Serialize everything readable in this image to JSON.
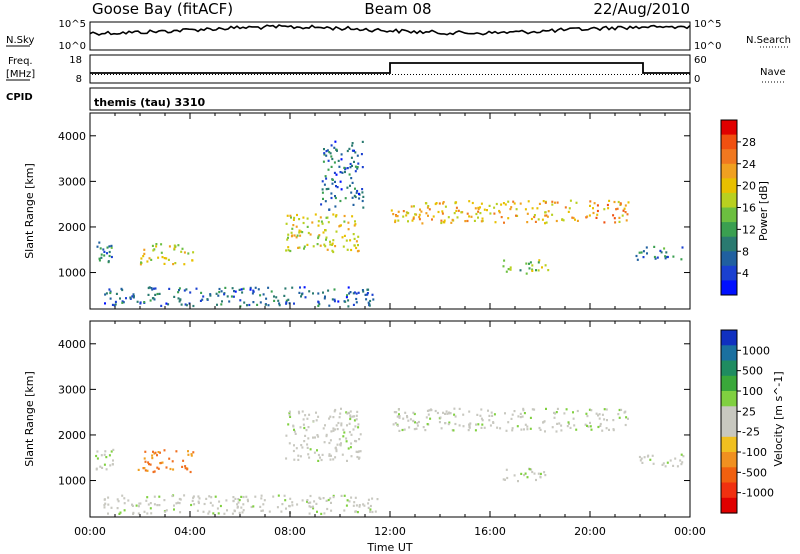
{
  "header": {
    "station": "Goose Bay (fitACF)",
    "beam": "Beam 08",
    "date": "22/Aug/2010"
  },
  "panels": {
    "noise": {
      "left_label": "N.Sky",
      "left_ticks": [
        "10^5",
        "10^0"
      ],
      "right_ticks": [
        "10^5",
        "10^0"
      ],
      "right_label": "N.Search"
    },
    "freq": {
      "label_line1": "Freq.",
      "label_line2": "[MHz]",
      "left_ticks": [
        "18",
        "8"
      ],
      "right_ticks": [
        "60",
        "0"
      ],
      "right_label": "Nave"
    },
    "cpid": {
      "label": "CPID",
      "text": "themis (tau) 3310"
    }
  },
  "colorbars": {
    "power": {
      "title": "Power [dB]",
      "ticks": [
        "28",
        "24",
        "20",
        "16",
        "12",
        "8",
        "4"
      ],
      "colors": [
        "#e00000",
        "#f05010",
        "#f07820",
        "#f0a020",
        "#e8c000",
        "#b8d020",
        "#6cbf40",
        "#3a9f50",
        "#2a7a70",
        "#2060a0",
        "#1a40d0",
        "#0010ff"
      ]
    },
    "velocity": {
      "title": "Velocity [m s^-1]",
      "ticks": [
        "1000",
        "500",
        "100",
        "25",
        "-25",
        "-100",
        "-500",
        "-1000"
      ],
      "colors": [
        "#1030c0",
        "#1a70a0",
        "#1f8c60",
        "#3aa83a",
        "#80d040",
        "#c8c8c0",
        "#c8c8c0",
        "#f0c020",
        "#f09020",
        "#f06010",
        "#f03010",
        "#e00000"
      ]
    }
  },
  "chart_data": [
    {
      "type": "heatmap",
      "name": "power",
      "xlabel": "",
      "ylabel": "Slant Range [km]",
      "xlim_ut_hours": [
        0,
        24
      ],
      "ylim_km": [
        200,
        4500
      ],
      "yticks": [
        1000,
        2000,
        3000,
        4000
      ],
      "colorbar": "Power [dB]",
      "echo_regions": [
        {
          "t0": 0.2,
          "t1": 0.9,
          "r0": 1250,
          "r1": 1700,
          "value": 8
        },
        {
          "t0": 1.9,
          "t1": 4.1,
          "r0": 1200,
          "r1": 1650,
          "value": 18
        },
        {
          "t0": 0.5,
          "t1": 11.5,
          "r0": 280,
          "r1": 700,
          "value": 6
        },
        {
          "t0": 7.8,
          "t1": 10.8,
          "r0": 1450,
          "r1": 2300,
          "value": 18
        },
        {
          "t0": 9.2,
          "t1": 10.9,
          "r0": 2400,
          "r1": 3900,
          "value": 6
        },
        {
          "t0": 12.0,
          "t1": 19.5,
          "r0": 2100,
          "r1": 2600,
          "value": 20
        },
        {
          "t0": 16.5,
          "t1": 18.3,
          "r0": 1000,
          "r1": 1300,
          "value": 14
        },
        {
          "t0": 19.7,
          "t1": 21.5,
          "r0": 2100,
          "r1": 2600,
          "value": 22
        },
        {
          "t0": 21.8,
          "t1": 23.7,
          "r0": 1300,
          "r1": 1600,
          "value": 8
        }
      ]
    },
    {
      "type": "heatmap",
      "name": "velocity",
      "xlabel": "Time UT",
      "ylabel": "Slant Range [km]",
      "xlim_ut_hours": [
        0,
        24
      ],
      "ylim_km": [
        200,
        4500
      ],
      "xticks": [
        "00:00",
        "04:00",
        "08:00",
        "12:00",
        "16:00",
        "20:00",
        "00:00"
      ],
      "yticks": [
        1000,
        2000,
        3000,
        4000
      ],
      "colorbar": "Velocity [m s^-1]",
      "echo_regions": [
        {
          "t0": 0.2,
          "t1": 0.9,
          "r0": 1250,
          "r1": 1700,
          "value": 0
        },
        {
          "t0": 1.9,
          "t1": 4.1,
          "r0": 1200,
          "r1": 1700,
          "value": -150
        },
        {
          "t0": 0.5,
          "t1": 11.5,
          "r0": 280,
          "r1": 700,
          "value": 0
        },
        {
          "t0": 7.8,
          "t1": 10.8,
          "r0": 1450,
          "r1": 2600,
          "value": 0
        },
        {
          "t0": 12.0,
          "t1": 19.5,
          "r0": 2100,
          "r1": 2600,
          "value": 0
        },
        {
          "t0": 16.5,
          "t1": 18.3,
          "r0": 1000,
          "r1": 1300,
          "value": 0
        },
        {
          "t0": 19.7,
          "t1": 21.5,
          "r0": 2100,
          "r1": 2600,
          "value": 0
        },
        {
          "t0": 21.8,
          "t1": 23.7,
          "r0": 1300,
          "r1": 1600,
          "value": 0
        }
      ]
    }
  ]
}
